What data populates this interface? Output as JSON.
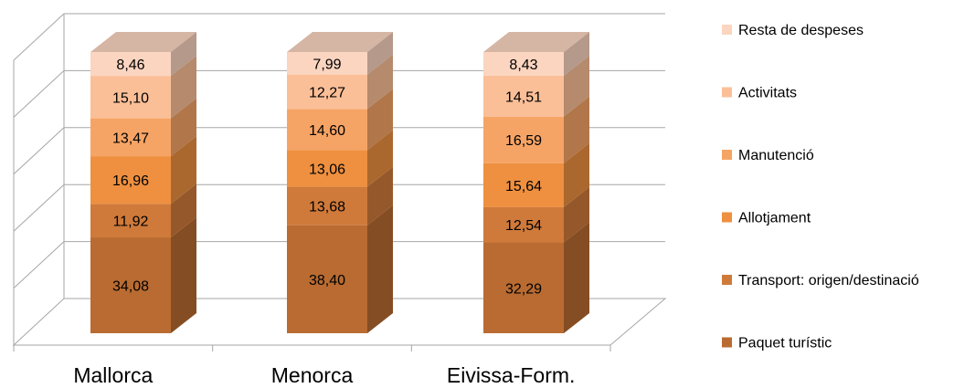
{
  "chart_data": {
    "type": "bar",
    "stacked": true,
    "three_d": true,
    "categories": [
      "Mallorca",
      "Menorca",
      "Eivissa-Form."
    ],
    "ylim": [
      0,
      100
    ],
    "grid": true,
    "legend_position": "right",
    "series": [
      {
        "name": "Paquet turístic",
        "color": "#b96b31",
        "values": [
          34.08,
          38.4,
          32.29
        ],
        "labels": [
          "34,08",
          "38,40",
          "32,29"
        ]
      },
      {
        "name": "Transport: origen/destinació",
        "color": "#cf7a3a",
        "values": [
          11.92,
          13.68,
          12.54
        ],
        "labels": [
          "11,92",
          "13,68",
          "12,54"
        ]
      },
      {
        "name": "Allotjament",
        "color": "#ee9040",
        "values": [
          16.96,
          13.06,
          15.64
        ],
        "labels": [
          "16,96",
          "13,06",
          "15,64"
        ]
      },
      {
        "name": "Manutenció",
        "color": "#f6a465",
        "values": [
          13.47,
          14.6,
          16.59
        ],
        "labels": [
          "13,47",
          "14,60",
          "16,59"
        ]
      },
      {
        "name": "Activitats",
        "color": "#fbbf98",
        "values": [
          15.1,
          12.27,
          14.51
        ],
        "labels": [
          "15,10",
          "12,27",
          "14,51"
        ]
      },
      {
        "name": "Resta de despeses",
        "color": "#fbd5c0",
        "values": [
          8.46,
          7.99,
          8.43
        ],
        "labels": [
          "8,46",
          "7,99",
          "8,43"
        ]
      }
    ]
  }
}
